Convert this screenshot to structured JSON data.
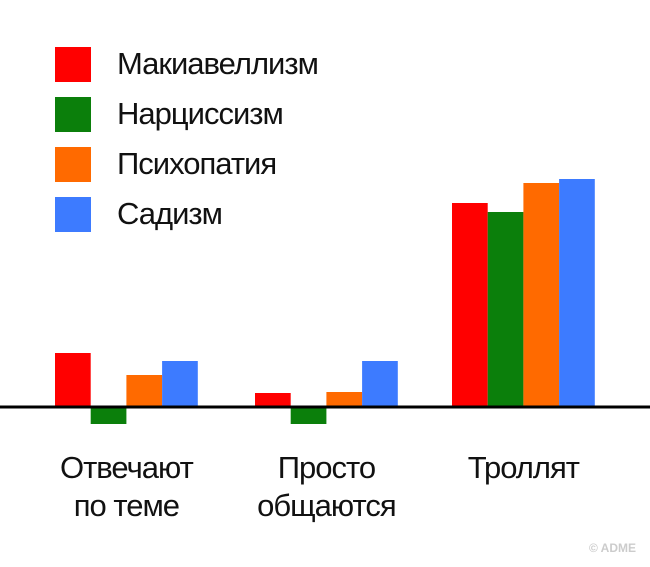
{
  "chart_data": {
    "type": "bar",
    "categories": [
      "Отвечают\nпо теме",
      "Просто\nобщаются",
      "Троллят"
    ],
    "series": [
      {
        "name": "Макиавеллизм",
        "color": "#ff0000",
        "values": [
          54,
          14,
          204
        ]
      },
      {
        "name": "Нарциссизм",
        "color": "#0b7f0b",
        "values": [
          -17,
          -17,
          195
        ]
      },
      {
        "name": "Психопатия",
        "color": "#ff6a00",
        "values": [
          32,
          15,
          224
        ]
      },
      {
        "name": "Садизм",
        "color": "#3d7bff",
        "values": [
          46,
          46,
          228
        ]
      }
    ],
    "ylim": [
      -50,
      260
    ],
    "watermark": "© ADME"
  }
}
